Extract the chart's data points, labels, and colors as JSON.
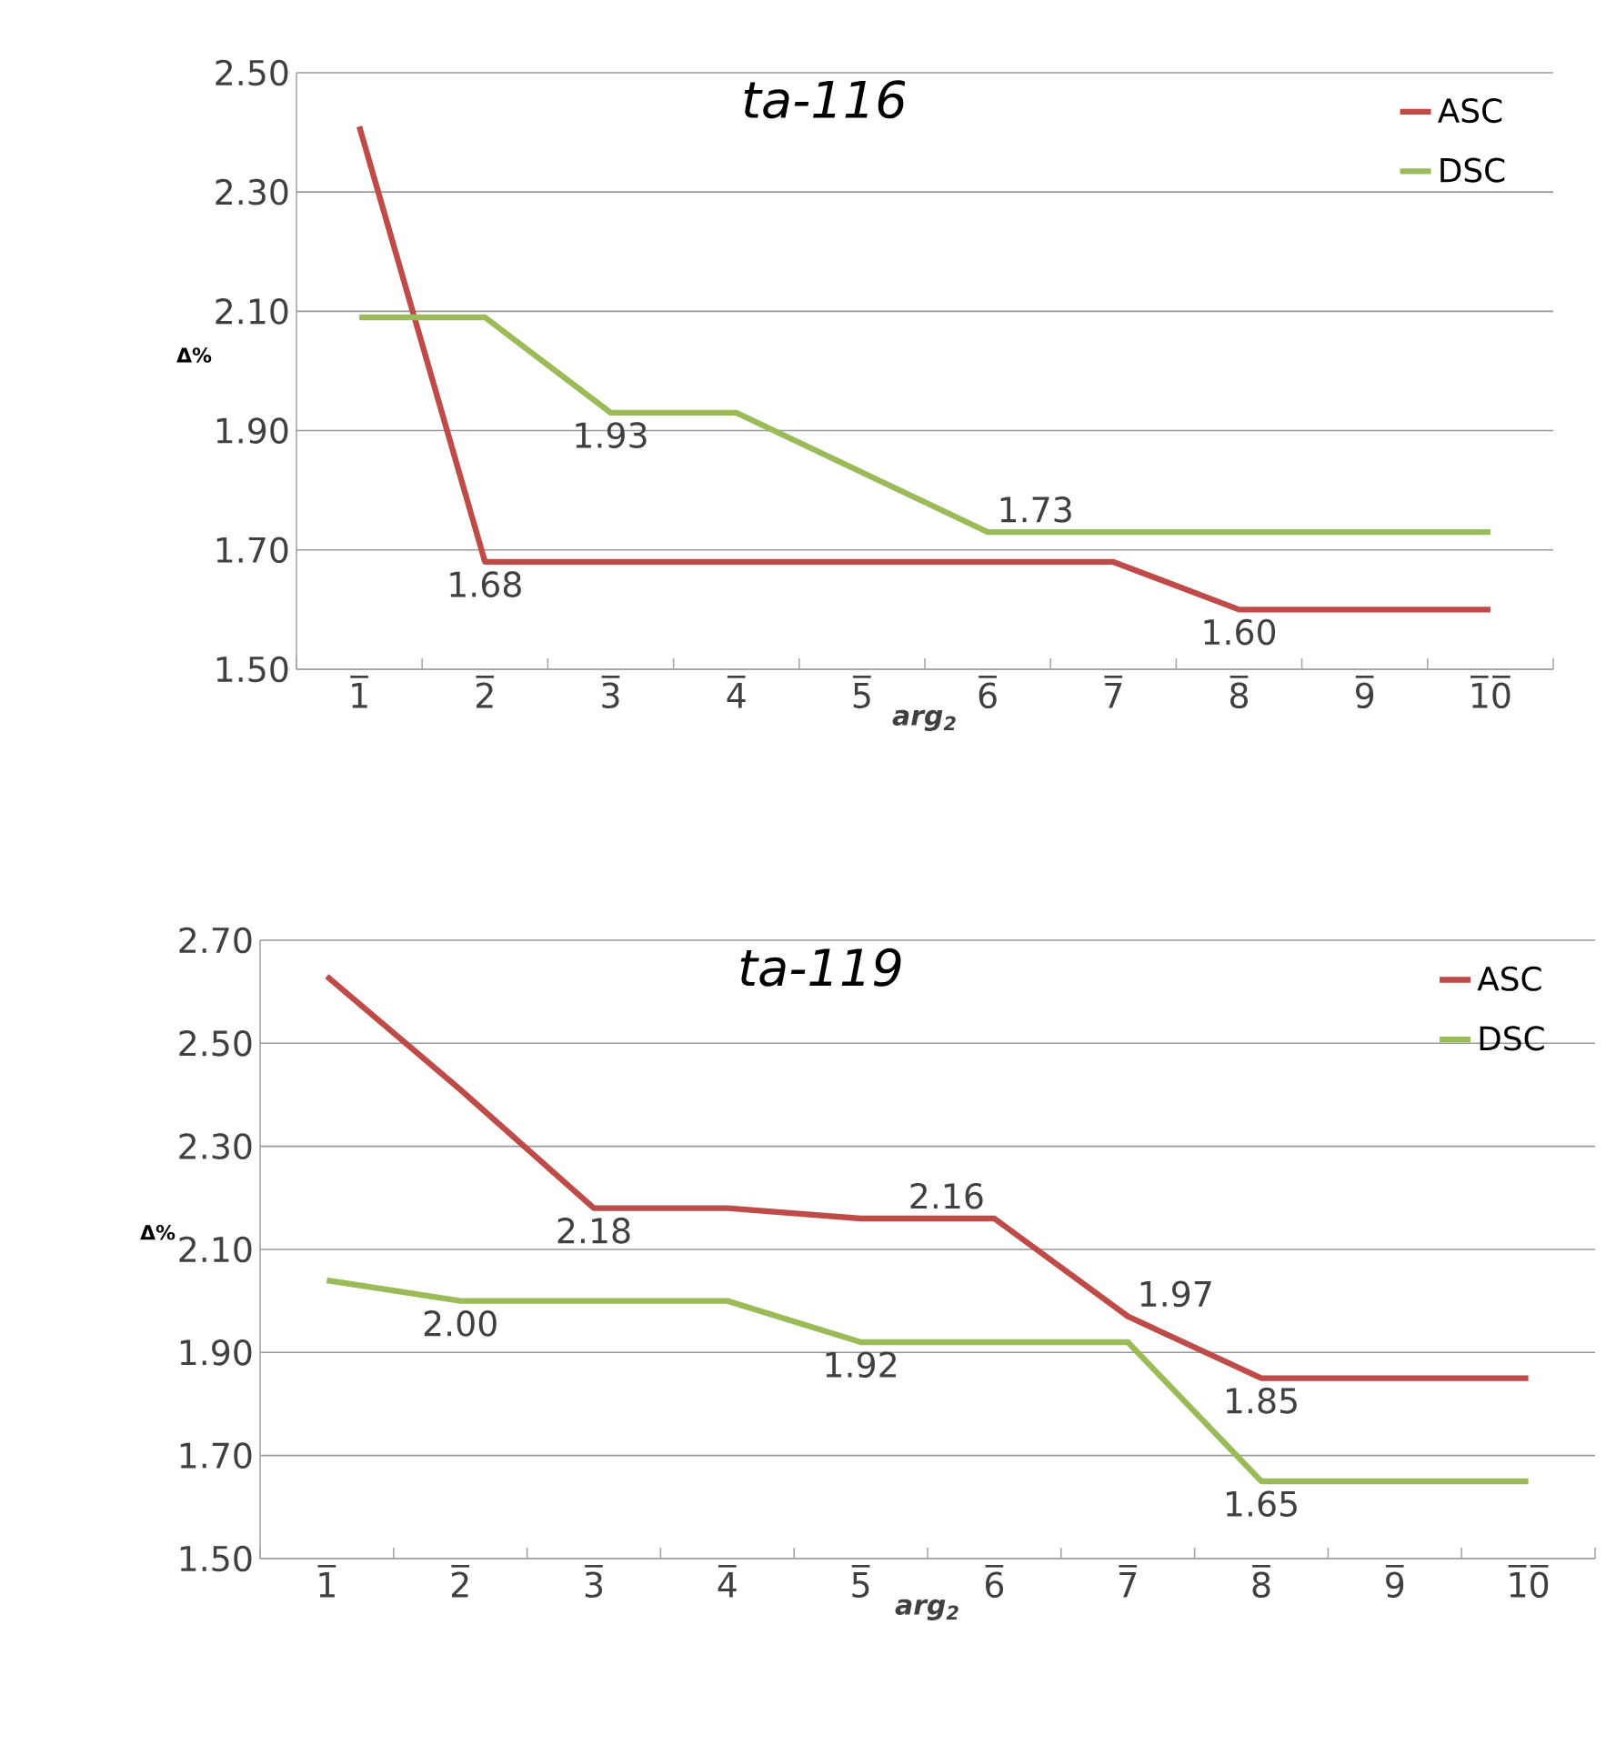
{
  "chart_data": [
    {
      "type": "line",
      "title": "ta-116",
      "xlabel": "arg$_{2}$",
      "ylabel": "Δ%",
      "categories": [
        "1̅",
        "2̅",
        "3̅",
        "4̅",
        "5̅",
        "6̅",
        "7̅",
        "8̅",
        "9̅",
        "1̅0̅"
      ],
      "series": [
        {
          "name": "ASC",
          "color": "#be4b48",
          "values": [
            2.41,
            1.68,
            1.68,
            1.68,
            1.68,
            1.68,
            1.68,
            1.6,
            1.6,
            1.6
          ],
          "value_labels": [
            null,
            "1.68",
            null,
            null,
            null,
            null,
            null,
            "1.60",
            null,
            null
          ]
        },
        {
          "name": "DSC",
          "color": "#9bbb59",
          "values": [
            2.09,
            2.09,
            1.93,
            1.93,
            1.83,
            1.73,
            1.73,
            1.73,
            1.73,
            1.73
          ],
          "value_labels": [
            null,
            null,
            "1.93",
            null,
            null,
            "1.73",
            null,
            null,
            null,
            null
          ]
        }
      ],
      "ylim": [
        1.5,
        2.5
      ],
      "yticks": [
        {
          "value": 1.5,
          "label": "1.50"
        },
        {
          "value": 1.7,
          "label": "1.70"
        },
        {
          "value": 1.9,
          "label": "1.90"
        },
        {
          "value": 2.1,
          "label": "2.10"
        },
        {
          "value": 2.3,
          "label": "2.30"
        },
        {
          "value": 2.5,
          "label": "2.50"
        }
      ],
      "grid": "y",
      "legend": "top right",
      "marker": "none",
      "line_style": "solid"
    },
    {
      "type": "line",
      "title": "ta-119",
      "xlabel": "arg$_{2}$",
      "ylabel": "Δ%",
      "categories": [
        "1̅",
        "2̅",
        "3̅",
        "4̅",
        "5̅",
        "6̅",
        "7̅",
        "8̅",
        "9̅",
        "1̅0̅"
      ],
      "series": [
        {
          "name": "ASC",
          "color": "#be4b48",
          "values": [
            2.63,
            2.41,
            2.18,
            2.18,
            2.16,
            2.16,
            1.97,
            1.85,
            1.85,
            1.85
          ],
          "value_labels": [
            null,
            null,
            "2.18",
            null,
            null,
            "2.16",
            "1.97",
            "1.85",
            null,
            null
          ]
        },
        {
          "name": "DSC",
          "color": "#9bbb59",
          "values": [
            2.04,
            2.0,
            2.0,
            2.0,
            1.92,
            1.92,
            1.92,
            1.65,
            1.65,
            1.65
          ],
          "value_labels": [
            null,
            "2.00",
            null,
            null,
            "1.92",
            null,
            null,
            "1.65",
            null,
            null
          ]
        }
      ],
      "ylim": [
        1.5,
        2.7
      ],
      "yticks": [
        {
          "value": 1.5,
          "label": "1.50"
        },
        {
          "value": 1.7,
          "label": "1.70"
        },
        {
          "value": 1.9,
          "label": "1.90"
        },
        {
          "value": 2.1,
          "label": "2.10"
        },
        {
          "value": 2.3,
          "label": "2.30"
        },
        {
          "value": 2.5,
          "label": "2.50"
        },
        {
          "value": 2.7,
          "label": "2.70"
        }
      ],
      "grid": "y",
      "legend": "top right",
      "marker": "none",
      "line_style": "solid"
    }
  ]
}
